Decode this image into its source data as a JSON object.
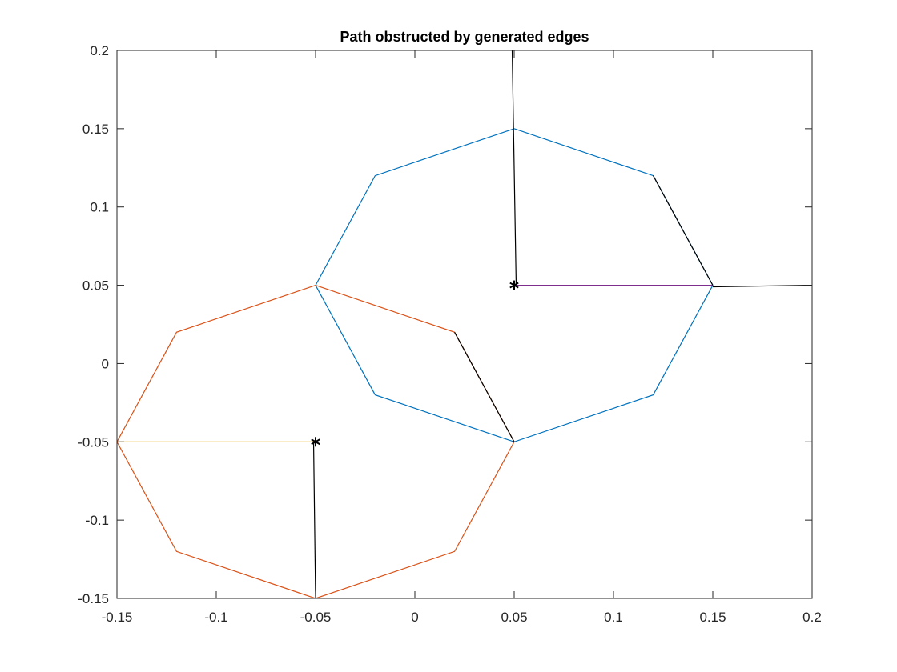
{
  "chart_data": {
    "type": "line",
    "title": "Path obstructed by generated edges",
    "xlabel": "",
    "ylabel": "",
    "xlim": [
      -0.15,
      0.2
    ],
    "ylim": [
      -0.15,
      0.2
    ],
    "xticks": [
      -0.15,
      -0.1,
      -0.05,
      0,
      0.05,
      0.1,
      0.15,
      0.2
    ],
    "xtick_labels": [
      "-0.15",
      "-0.1",
      "-0.05",
      "0",
      "0.05",
      "0.1",
      "0.15",
      "0.2"
    ],
    "yticks": [
      -0.15,
      -0.1,
      -0.05,
      0,
      0.05,
      0.1,
      0.15,
      0.2
    ],
    "ytick_labels": [
      "-0.15",
      "-0.1",
      "-0.05",
      "0",
      "0.05",
      "0.1",
      "0.15",
      "0.2"
    ],
    "grid": false,
    "series": [
      {
        "color": "#0072BD",
        "x": [
          0.05,
          0.12,
          0.15,
          0.12,
          0.05,
          -0.02,
          -0.05,
          -0.02,
          0.05
        ],
        "y": [
          0.15,
          0.12,
          0.05,
          -0.02,
          -0.05,
          -0.02,
          0.05,
          0.12,
          0.15
        ]
      },
      {
        "color": "#D95319",
        "x": [
          -0.05,
          0.02,
          0.05,
          0.02,
          -0.05,
          -0.12,
          -0.15,
          -0.12,
          -0.05
        ],
        "y": [
          0.05,
          0.02,
          -0.05,
          -0.12,
          -0.15,
          -0.12,
          -0.05,
          0.02,
          0.05
        ]
      },
      {
        "color": "#EDB120",
        "x": [
          -0.15,
          -0.05
        ],
        "y": [
          -0.05,
          -0.05
        ]
      },
      {
        "color": "#7E2F8E",
        "x": [
          0.05,
          0.15
        ],
        "y": [
          0.05,
          0.05
        ]
      },
      {
        "color": "#000000",
        "x": [
          0.049,
          0.051
        ],
        "y": [
          0.2,
          0.05
        ]
      },
      {
        "color": "#000000",
        "x": [
          0.12,
          0.15
        ],
        "y": [
          0.12,
          0.05
        ]
      },
      {
        "color": "#000000",
        "x": [
          0.15,
          0.2
        ],
        "y": [
          0.049,
          0.05
        ]
      },
      {
        "color": "#000000",
        "x": [
          0.02,
          0.05
        ],
        "y": [
          0.02,
          -0.05
        ]
      },
      {
        "color": "#000000",
        "x": [
          -0.051,
          -0.05
        ],
        "y": [
          -0.05,
          -0.15
        ]
      }
    ],
    "markers": [
      {
        "symbol": "*",
        "x": 0.05,
        "y": 0.05
      },
      {
        "symbol": "*",
        "x": -0.05,
        "y": -0.05
      }
    ]
  }
}
